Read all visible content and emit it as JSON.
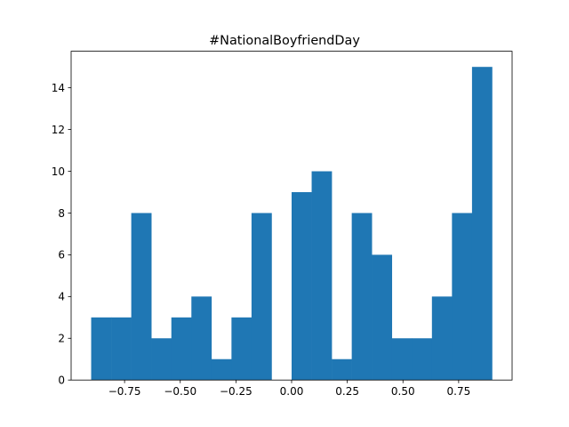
{
  "chart_data": {
    "type": "bar",
    "title": "#NationalBoyfriendDay",
    "xlabel": "",
    "ylabel": "",
    "bar_color": "#1f77b4",
    "bin_edges": [
      -0.9,
      -0.81,
      -0.72,
      -0.63,
      -0.54,
      -0.45,
      -0.36,
      -0.27,
      -0.18,
      -0.09,
      0.0,
      0.09,
      0.18,
      0.27,
      0.36,
      0.45,
      0.54,
      0.63,
      0.72,
      0.81,
      0.9
    ],
    "values": [
      3,
      3,
      8,
      2,
      3,
      4,
      1,
      3,
      8,
      0,
      9,
      10,
      1,
      8,
      6,
      2,
      2,
      4,
      8,
      15
    ],
    "xlim": [
      -0.99,
      0.99
    ],
    "ylim": [
      0,
      15.75
    ],
    "x_ticks": [
      -0.75,
      -0.5,
      -0.25,
      0.0,
      0.25,
      0.5,
      0.75
    ],
    "x_tick_labels": [
      "−0.75",
      "−0.50",
      "−0.25",
      "0.00",
      "0.25",
      "0.50",
      "0.75"
    ],
    "y_ticks": [
      0,
      2,
      4,
      6,
      8,
      10,
      12,
      14
    ],
    "y_tick_labels": [
      "0",
      "2",
      "4",
      "6",
      "8",
      "10",
      "12",
      "14"
    ],
    "grid": false,
    "legend": false
  }
}
